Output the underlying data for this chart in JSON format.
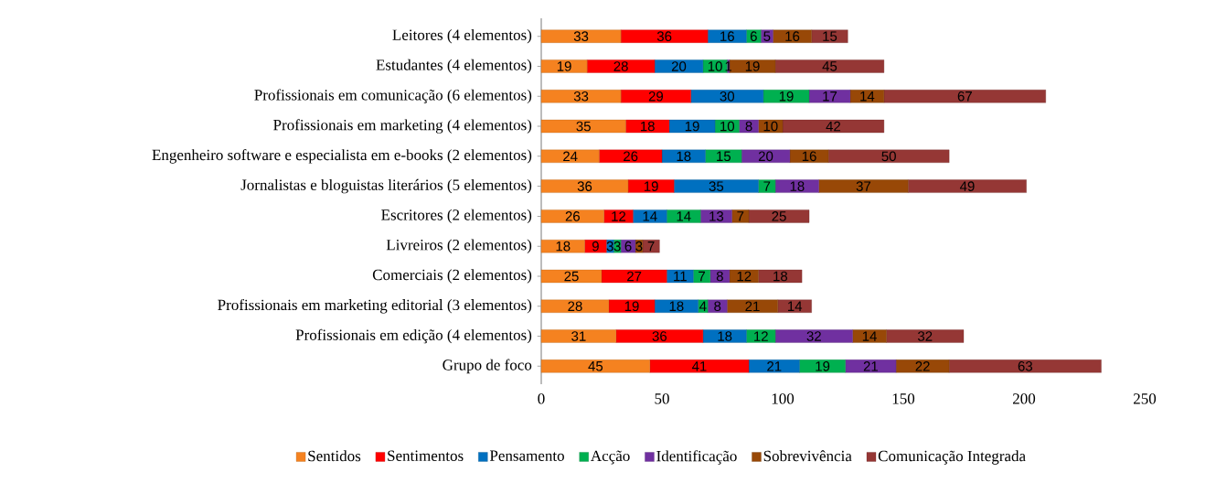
{
  "chart_data": {
    "type": "bar",
    "orientation": "horizontal",
    "stacked": true,
    "data_labels": true,
    "grid": false,
    "legend": "bottom",
    "categories": [
      "Leitores (4 elementos)",
      "Estudantes (4 elementos)",
      "Profissionais em comunicação (6 elementos)",
      "Profissionais em marketing (4 elementos)",
      "Engenheiro software e especialista em e-books (2 elementos)",
      "Jornalistas e bloguistas literários (5 elementos)",
      "Escritores (2 elementos)",
      "Livreiros (2 elementos)",
      "Comerciais (2 elementos)",
      "Profissionais em  marketing editorial (3 elementos)",
      "Profissionais em edição (4 elementos)",
      "Grupo de foco"
    ],
    "xlim": [
      0,
      250
    ],
    "xticks": [
      0,
      50,
      100,
      150,
      200,
      250
    ],
    "series": [
      {
        "name": "Sentidos",
        "color": "#f58220",
        "values": [
          33,
          19,
          33,
          35,
          24,
          36,
          26,
          18,
          25,
          28,
          31,
          45
        ]
      },
      {
        "name": "Sentimentos",
        "color": "#ff0000",
        "values": [
          36,
          28,
          29,
          18,
          26,
          19,
          12,
          9,
          27,
          19,
          36,
          41
        ]
      },
      {
        "name": "Pensamento",
        "color": "#0070c0",
        "values": [
          16,
          20,
          30,
          19,
          18,
          35,
          14,
          3,
          11,
          18,
          18,
          21
        ]
      },
      {
        "name": "Acção",
        "color": "#00b050",
        "values": [
          6,
          10,
          19,
          10,
          15,
          7,
          14,
          3,
          7,
          4,
          12,
          19
        ]
      },
      {
        "name": "Identificação",
        "color": "#7030a0",
        "values": [
          5,
          1,
          17,
          8,
          20,
          18,
          13,
          6,
          8,
          8,
          32,
          21
        ]
      },
      {
        "name": "Sobrevivência",
        "color": "#984807",
        "values": [
          16,
          19,
          14,
          10,
          16,
          37,
          7,
          3,
          12,
          21,
          14,
          22
        ]
      },
      {
        "name": "Comunicação Integrada",
        "color": "#953735",
        "values": [
          15,
          45,
          67,
          42,
          50,
          49,
          25,
          7,
          18,
          14,
          32,
          63
        ]
      }
    ]
  }
}
